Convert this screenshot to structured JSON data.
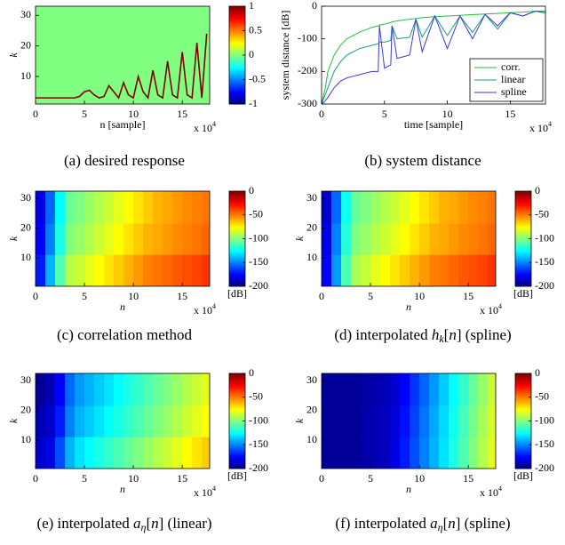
{
  "chart_data": [
    {
      "type": "heatmap-ridge",
      "caption": [
        "(a) desired response"
      ],
      "xlabel": "n [sample]",
      "ylabel": "k",
      "x_scale": [
        "x 10",
        "4"
      ],
      "xlim": [
        0,
        17.8
      ],
      "ylim": [
        1,
        33
      ],
      "xticks": [
        0,
        5,
        10,
        15
      ],
      "yticks": [
        10,
        20,
        30
      ],
      "colormap": "jet",
      "clim": [
        -1,
        1
      ],
      "cbticks": [
        1,
        0.5,
        0,
        -0.5,
        -1
      ],
      "background": 0,
      "ridge": {
        "value": 1,
        "x": [
          0,
          4,
          4.5,
          5,
          5.5,
          6,
          6.5,
          7,
          7.5,
          8,
          8.5,
          9,
          9.5,
          10,
          10.5,
          11,
          11.5,
          12,
          12.5,
          13,
          13.5,
          14,
          14.5,
          15,
          15.5,
          16,
          16.5,
          17,
          17.5
        ],
        "k": [
          3,
          3,
          3.5,
          5,
          5.5,
          4,
          3,
          3.5,
          7,
          5,
          3,
          8,
          4,
          3,
          10,
          5,
          3,
          12,
          4,
          3,
          15,
          4,
          3,
          18,
          4,
          3,
          21,
          3,
          24
        ]
      }
    },
    {
      "type": "line",
      "caption": [
        "(b) system distance"
      ],
      "xlabel": "time [sample]",
      "ylabel": "system distance [dB]",
      "x_scale": [
        "x 10",
        "4"
      ],
      "xlim": [
        0,
        17.8
      ],
      "ylim": [
        -300,
        0
      ],
      "xticks": [
        0,
        5,
        10,
        15
      ],
      "yticks": [
        -300,
        -200,
        -100,
        0
      ],
      "legend": "lower right",
      "x": [
        0,
        0.3,
        0.5,
        1,
        1.5,
        2,
        3,
        4,
        4.5,
        4.6,
        5,
        5.5,
        5.6,
        6,
        7,
        7.5,
        8,
        9,
        10,
        11,
        12,
        13,
        14,
        15,
        16,
        17,
        17.8
      ],
      "series": [
        {
          "name": "corr.",
          "color": "#1fbf3f",
          "values": [
            -300,
            -250,
            -200,
            -150,
            -120,
            -100,
            -80,
            -65,
            -60,
            -58,
            -55,
            -50,
            -48,
            -45,
            -40,
            -38,
            -35,
            -32,
            -30,
            -28,
            -26,
            -24,
            -22,
            -20,
            -18,
            -15,
            -15
          ]
        },
        {
          "name": "linear",
          "color": "#1a9a8a",
          "values": [
            -300,
            -270,
            -250,
            -200,
            -170,
            -150,
            -130,
            -120,
            -115,
            -110,
            -110,
            -105,
            -60,
            -100,
            -95,
            -40,
            -95,
            -30,
            -90,
            -30,
            -80,
            -25,
            -70,
            -20,
            -30,
            -15,
            -20
          ]
        },
        {
          "name": "spline",
          "color": "#3a3ad0",
          "values": [
            -300,
            -290,
            -280,
            -250,
            -230,
            -220,
            -210,
            -200,
            -200,
            -60,
            -190,
            -180,
            -60,
            -160,
            -150,
            -40,
            -140,
            -30,
            -130,
            -30,
            -100,
            -25,
            -60,
            -20,
            -30,
            -15,
            -20
          ]
        }
      ]
    },
    {
      "type": "heatmap",
      "caption": [
        "(c) correlation method"
      ],
      "xlabel": "n",
      "ylabel": "k",
      "x_scale": [
        "x 10",
        "4"
      ],
      "xlim": [
        0,
        17.8
      ],
      "ylim": [
        0.5,
        32.5
      ],
      "xticks": [
        0,
        5,
        10,
        15
      ],
      "yticks": [
        10,
        20,
        30
      ],
      "colormap": "jet",
      "clim": [
        -200,
        0
      ],
      "cbticks": [
        0,
        -50,
        -100,
        -150,
        -200
      ],
      "cblabel": "[dB]",
      "x": [
        0.5,
        1.5,
        2.5,
        3.5,
        4.5,
        5.5,
        6.5,
        7.5,
        8.5,
        9.5,
        10.5,
        11.5,
        12.5,
        13.5,
        14.5,
        15.5,
        16.5,
        17.5
      ],
      "y": [
        6,
        16.5,
        27
      ],
      "z": [
        [
          -170,
          -140,
          -110,
          -90,
          -85,
          -80,
          -75,
          -70,
          -65,
          -60,
          -55,
          -50,
          -48,
          -45,
          -42,
          -40,
          -38,
          -35
        ],
        [
          -175,
          -150,
          -120,
          -100,
          -95,
          -90,
          -85,
          -80,
          -75,
          -70,
          -65,
          -60,
          -58,
          -55,
          -52,
          -50,
          -48,
          -45
        ],
        [
          -180,
          -155,
          -125,
          -105,
          -100,
          -95,
          -90,
          -85,
          -80,
          -75,
          -70,
          -65,
          -60,
          -58,
          -55,
          -52,
          -50,
          -48
        ]
      ]
    },
    {
      "type": "heatmap",
      "caption": [
        "(d) interpolated ",
        "h",
        "k",
        "[",
        "n",
        "] (spline)"
      ],
      "xlabel": "n",
      "ylabel": "k",
      "x_scale": [
        "x 10",
        "4"
      ],
      "xlim": [
        0,
        17.8
      ],
      "ylim": [
        0.5,
        32.5
      ],
      "xticks": [
        0,
        5,
        10,
        15
      ],
      "yticks": [
        10,
        20,
        30
      ],
      "colormap": "jet",
      "clim": [
        -200,
        0
      ],
      "cbticks": [
        0,
        -50,
        -100,
        -150,
        -200
      ],
      "cblabel": "[dB]",
      "x": [
        0.5,
        1.5,
        2.5,
        3.5,
        4.5,
        5.5,
        6.5,
        7.5,
        8.5,
        9.5,
        10.5,
        11.5,
        12.5,
        13.5,
        14.5,
        15.5,
        16.5,
        17.5
      ],
      "y": [
        6,
        16.5,
        27
      ],
      "z": [
        [
          -175,
          -145,
          -110,
          -92,
          -86,
          -80,
          -75,
          -70,
          -65,
          -60,
          -55,
          -50,
          -48,
          -45,
          -42,
          -40,
          -38,
          -35
        ],
        [
          -180,
          -150,
          -118,
          -100,
          -95,
          -90,
          -85,
          -80,
          -75,
          -70,
          -65,
          -60,
          -58,
          -55,
          -52,
          -50,
          -48,
          -45
        ],
        [
          -185,
          -155,
          -122,
          -105,
          -100,
          -95,
          -90,
          -85,
          -80,
          -75,
          -70,
          -65,
          -60,
          -58,
          -55,
          -52,
          -50,
          -48
        ]
      ]
    },
    {
      "type": "heatmap",
      "caption": [
        "(e) interpolated ",
        "a",
        "η",
        "[",
        "n",
        "] (linear)"
      ],
      "xlabel": "n",
      "ylabel": "k",
      "x_scale": [
        "x 10",
        "4"
      ],
      "xlim": [
        0,
        17.8
      ],
      "ylim": [
        0.5,
        32.5
      ],
      "xticks": [
        0,
        5,
        10,
        15
      ],
      "yticks": [
        10,
        20,
        30
      ],
      "colormap": "jet",
      "clim": [
        -200,
        0
      ],
      "cbticks": [
        0,
        -50,
        -100,
        -150,
        -200
      ],
      "cblabel": "[dB]",
      "x": [
        0.5,
        1.5,
        2.5,
        3.5,
        4.5,
        5.5,
        6.5,
        7.5,
        8.5,
        9.5,
        10.5,
        11.5,
        12.5,
        13.5,
        14.5,
        15.5,
        16.5,
        17.5
      ],
      "y": [
        6,
        16.5,
        27
      ],
      "z": [
        [
          -185,
          -180,
          -160,
          -140,
          -130,
          -125,
          -120,
          -115,
          -110,
          -105,
          -100,
          -95,
          -90,
          -85,
          -80,
          -75,
          -70,
          -65
        ],
        [
          -190,
          -185,
          -170,
          -150,
          -140,
          -135,
          -130,
          -125,
          -120,
          -115,
          -110,
          -105,
          -100,
          -95,
          -90,
          -85,
          -80,
          -75
        ],
        [
          -195,
          -190,
          -175,
          -155,
          -145,
          -140,
          -135,
          -130,
          -125,
          -120,
          -115,
          -110,
          -105,
          -100,
          -95,
          -90,
          -85,
          -80
        ]
      ]
    },
    {
      "type": "heatmap",
      "caption": [
        "(f) interpolated ",
        "a",
        "η",
        "[",
        "n",
        "] (spline)"
      ],
      "xlabel": "n",
      "ylabel": "k",
      "x_scale": [
        "x 10",
        "4"
      ],
      "xlim": [
        0,
        17.8
      ],
      "ylim": [
        0.5,
        32.5
      ],
      "xticks": [
        0,
        5,
        10,
        15
      ],
      "yticks": [
        10,
        20,
        30
      ],
      "colormap": "jet",
      "clim": [
        -200,
        0
      ],
      "cbticks": [
        0,
        -50,
        -100,
        -150,
        -200
      ],
      "cblabel": "[dB]",
      "x": [
        0.5,
        1.5,
        2.5,
        3.5,
        4.5,
        5.5,
        6.5,
        7.5,
        8.5,
        9.5,
        10.5,
        11.5,
        12.5,
        13.5,
        14.5,
        15.5,
        16.5,
        17.5
      ],
      "y": [
        6,
        16.5,
        27
      ],
      "z": [
        [
          -195,
          -195,
          -195,
          -195,
          -192,
          -190,
          -188,
          -180,
          -170,
          -160,
          -150,
          -140,
          -130,
          -120,
          -110,
          -100,
          -90,
          -80
        ],
        [
          -195,
          -195,
          -195,
          -195,
          -192,
          -190,
          -188,
          -182,
          -172,
          -162,
          -152,
          -142,
          -132,
          -122,
          -112,
          -102,
          -92,
          -82
        ],
        [
          -195,
          -195,
          -195,
          -195,
          -193,
          -191,
          -189,
          -184,
          -175,
          -165,
          -155,
          -145,
          -135,
          -125,
          -115,
          -105,
          -95,
          -85
        ]
      ]
    }
  ]
}
